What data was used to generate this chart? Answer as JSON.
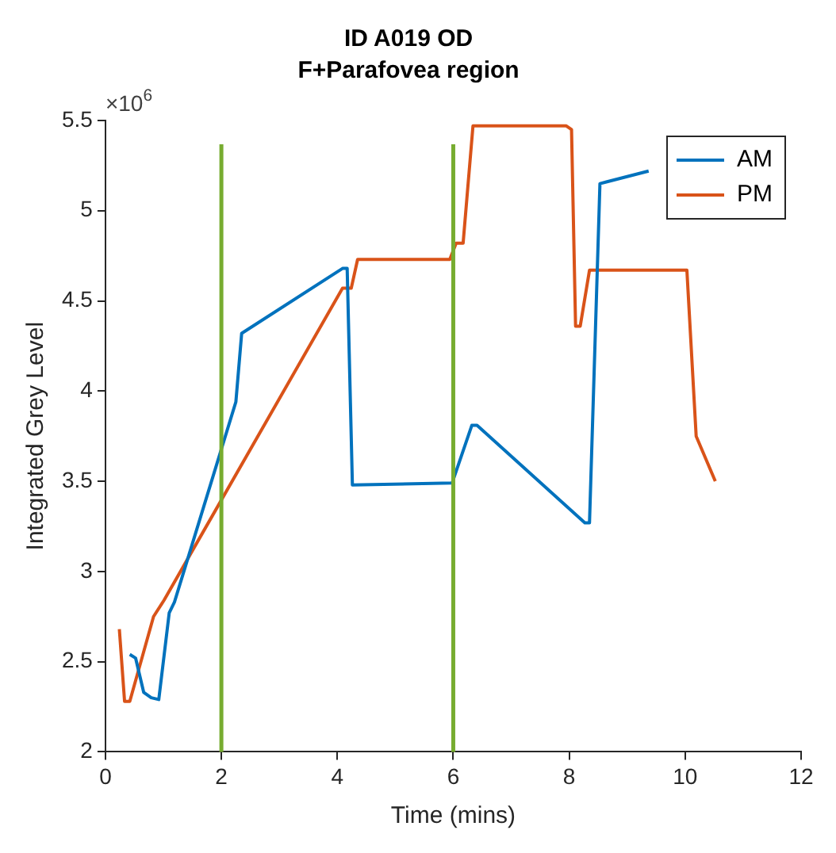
{
  "chart_data": {
    "type": "line",
    "title": "ID A019 OD",
    "subtitle": "F+Parafovea region",
    "xlabel": "Time (mins)",
    "ylabel": "Integrated Grey Level",
    "annotations": [
      "×10$^{6}$"
    ],
    "series": [
      {
        "name": "AM",
        "color": "#0072bd",
        "x": [
          0.42,
          0.52,
          0.66,
          0.79,
          0.92,
          1.1,
          1.19,
          2.25,
          2.35,
          4.09,
          4.17,
          4.26,
          5.98,
          6.32,
          6.41,
          8.27,
          8.35,
          8.53,
          9.37
        ],
        "values": [
          2.54,
          2.52,
          2.33,
          2.3,
          2.29,
          2.77,
          2.83,
          3.94,
          4.32,
          4.68,
          4.68,
          3.48,
          3.49,
          3.81,
          3.81,
          3.27,
          3.27,
          5.15,
          5.22
        ]
      },
      {
        "name": "PM",
        "color": "#d95319",
        "x": [
          0.24,
          0.33,
          0.42,
          0.83,
          1.01,
          4.09,
          4.24,
          4.35,
          5.94,
          6.05,
          6.17,
          6.34,
          7.95,
          8.04,
          8.11,
          8.19,
          8.35,
          10.03,
          10.19,
          10.52
        ],
        "values": [
          2.68,
          2.28,
          2.28,
          2.75,
          2.84,
          4.57,
          4.57,
          4.73,
          4.73,
          4.82,
          4.82,
          5.47,
          5.47,
          5.45,
          4.36,
          4.36,
          4.67,
          4.67,
          3.75,
          3.5
        ]
      }
    ],
    "ref_lines": [
      {
        "axis": "x",
        "value": 2,
        "color": "#77ac30"
      },
      {
        "axis": "x",
        "value": 6,
        "color": "#77ac30"
      }
    ],
    "xlim": [
      0,
      12
    ],
    "xticks": [
      0,
      2,
      4,
      6,
      8,
      10,
      12
    ],
    "ylim": [
      2,
      5.5
    ],
    "yticks": [
      2,
      2.5,
      3,
      3.5,
      4,
      4.5,
      5,
      5.5
    ],
    "grid": false,
    "legend": "top right",
    "marker": "none",
    "line_style": "solid"
  }
}
